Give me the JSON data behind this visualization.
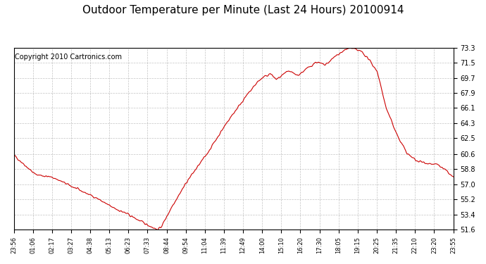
{
  "title": "Outdoor Temperature per Minute (Last 24 Hours) 20100914",
  "copyright": "Copyright 2010 Cartronics.com",
  "line_color": "#cc0000",
  "bg_color": "#ffffff",
  "plot_bg_color": "#ffffff",
  "grid_color": "#aaaaaa",
  "yticks": [
    51.6,
    53.4,
    55.2,
    57.0,
    58.8,
    60.6,
    62.5,
    64.3,
    66.1,
    67.9,
    69.7,
    71.5,
    73.3
  ],
  "ylim": [
    51.6,
    73.3
  ],
  "xtick_labels": [
    "23:56",
    "01:06",
    "02:17",
    "03:27",
    "04:38",
    "05:13",
    "06:23",
    "07:33",
    "08:44",
    "09:54",
    "11:04",
    "11:39",
    "12:49",
    "14:00",
    "15:10",
    "16:20",
    "17:30",
    "18:05",
    "19:15",
    "20:25",
    "21:35",
    "22:10",
    "23:20",
    "23:55"
  ],
  "num_points": 1440,
  "key_times": [
    0,
    70,
    130,
    210,
    270,
    320,
    370,
    420,
    470,
    480,
    490,
    520,
    570,
    630,
    700,
    750,
    800,
    820,
    840,
    860,
    900,
    930,
    960,
    990,
    1020,
    1060,
    1100,
    1140,
    1160,
    1190,
    1220,
    1260,
    1290,
    1320,
    1360,
    1390,
    1420,
    1439
  ],
  "key_temps": [
    60.5,
    58.2,
    57.8,
    56.4,
    55.4,
    54.3,
    53.5,
    52.5,
    51.6,
    51.8,
    52.4,
    54.5,
    57.5,
    60.5,
    64.5,
    67.0,
    69.3,
    69.8,
    70.2,
    69.5,
    70.5,
    70.0,
    70.8,
    71.6,
    71.2,
    72.5,
    73.3,
    72.8,
    72.0,
    70.5,
    66.0,
    62.5,
    60.6,
    59.8,
    59.5,
    59.3,
    58.5,
    57.8
  ]
}
